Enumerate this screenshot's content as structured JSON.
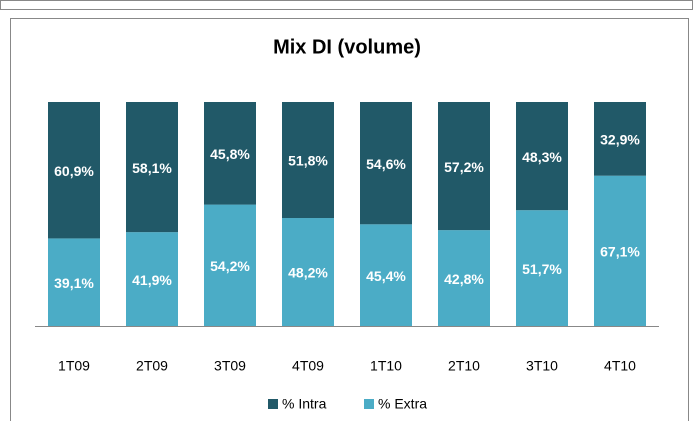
{
  "chart_data": {
    "type": "stacked_bar",
    "title": "Mix DI (volume)",
    "categories": [
      "1T09",
      "2T09",
      "3T09",
      "4T09",
      "1T10",
      "2T10",
      "3T10",
      "4T10"
    ],
    "series": [
      {
        "name": "% Intra",
        "color": "#215968",
        "values": [
          60.9,
          58.1,
          45.8,
          51.8,
          54.6,
          57.2,
          48.3,
          32.9
        ],
        "value_labels": [
          "60,9%",
          "58,1%",
          "45,8%",
          "51,8%",
          "54,6%",
          "57,2%",
          "48,3%",
          "32,9%"
        ]
      },
      {
        "name": "% Extra",
        "color": "#4bacc6",
        "values": [
          39.1,
          41.9,
          54.2,
          48.2,
          45.4,
          42.8,
          51.7,
          67.1
        ],
        "value_labels": [
          "39,1%",
          "41,9%",
          "54,2%",
          "48,2%",
          "45,4%",
          "42,8%",
          "51,7%",
          "67,1%"
        ]
      }
    ],
    "ylim": [
      0,
      100
    ],
    "legend": "bottom"
  }
}
